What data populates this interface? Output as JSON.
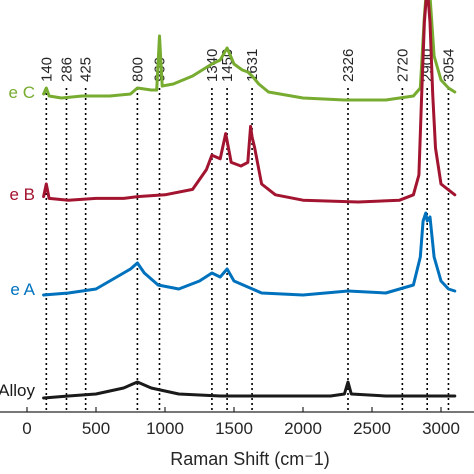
{
  "chart_data": {
    "type": "line",
    "title": "",
    "xlabel": "Raman Shift (cm⁻1)",
    "ylabel": "",
    "xlim": [
      0,
      3100
    ],
    "x_ticks": [
      "0",
      "500",
      "1000",
      "1500",
      "2000",
      "2500",
      "3000"
    ],
    "x_tick_values": [
      0,
      500,
      1000,
      1500,
      2000,
      2500,
      3000
    ],
    "grid": false,
    "legend": "inline labels at left edge",
    "peak_lines": [
      {
        "x": 140,
        "label": "140"
      },
      {
        "x": 286,
        "label": "286"
      },
      {
        "x": 425,
        "label": "425"
      },
      {
        "x": 800,
        "label": "800"
      },
      {
        "x": 960,
        "label": "960"
      },
      {
        "x": 1340,
        "label": "1340"
      },
      {
        "x": 1450,
        "label": "1450"
      },
      {
        "x": 1631,
        "label": "1631"
      },
      {
        "x": 2326,
        "label": "2326"
      },
      {
        "x": 2720,
        "label": "2720"
      },
      {
        "x": 2900,
        "label": "2900"
      },
      {
        "x": 3054,
        "label": "3054"
      }
    ],
    "series": [
      {
        "name": "e C",
        "color": "#77ac30",
        "baseline": 0,
        "x": [
          120,
          140,
          160,
          250,
          400,
          600,
          750,
          800,
          900,
          940,
          960,
          980,
          1060,
          1200,
          1340,
          1400,
          1450,
          1500,
          1560,
          1600,
          1631,
          1680,
          1750,
          2000,
          2300,
          2600,
          2800,
          2850,
          2880,
          2900,
          2920,
          2950,
          3000,
          3054,
          3100
        ],
        "y": [
          0.03,
          0.06,
          0.02,
          0.01,
          0.02,
          0.02,
          0.03,
          0.06,
          0.05,
          0.05,
          0.32,
          0.07,
          0.08,
          0.12,
          0.18,
          0.2,
          0.26,
          0.18,
          0.15,
          0.14,
          0.12,
          0.08,
          0.04,
          0.01,
          0.0,
          0.0,
          0.02,
          0.06,
          0.42,
          0.6,
          0.52,
          0.22,
          0.1,
          0.06,
          0.04
        ]
      },
      {
        "name": "e B",
        "color": "#a2142f",
        "baseline": 0,
        "x": [
          120,
          140,
          160,
          300,
          500,
          700,
          800,
          1000,
          1200,
          1300,
          1340,
          1400,
          1440,
          1450,
          1480,
          1550,
          1600,
          1620,
          1631,
          1650,
          1700,
          1800,
          2000,
          2400,
          2700,
          2800,
          2840,
          2860,
          2880,
          2900,
          2920,
          2940,
          2960,
          3000,
          3100
        ],
        "y": [
          0.03,
          0.1,
          0.02,
          0.01,
          0.02,
          0.02,
          0.03,
          0.04,
          0.07,
          0.18,
          0.26,
          0.24,
          0.38,
          0.34,
          0.22,
          0.2,
          0.22,
          0.42,
          0.36,
          0.3,
          0.1,
          0.04,
          0.01,
          0.0,
          0.01,
          0.04,
          0.15,
          0.6,
          1.0,
          1.2,
          1.0,
          0.6,
          0.3,
          0.1,
          0.04
        ]
      },
      {
        "name": "e A",
        "color": "#0072bd",
        "baseline": 0,
        "x": [
          120,
          300,
          500,
          650,
          750,
          800,
          850,
          950,
          1100,
          1250,
          1340,
          1400,
          1450,
          1500,
          1600,
          1700,
          2000,
          2326,
          2600,
          2800,
          2850,
          2870,
          2890,
          2900,
          2920,
          2950,
          3000,
          3054,
          3100
        ],
        "y": [
          0.01,
          0.02,
          0.04,
          0.1,
          0.14,
          0.17,
          0.12,
          0.06,
          0.04,
          0.08,
          0.12,
          0.1,
          0.14,
          0.08,
          0.05,
          0.02,
          0.01,
          0.03,
          0.02,
          0.06,
          0.2,
          0.38,
          0.42,
          0.38,
          0.4,
          0.2,
          0.08,
          0.04,
          0.03
        ]
      },
      {
        "name": "Alloy",
        "color": "#1a1a1a",
        "baseline": 0,
        "x": [
          120,
          300,
          500,
          700,
          800,
          900,
          1100,
          1400,
          1800,
          2200,
          2300,
          2326,
          2350,
          2600,
          2900,
          3100
        ],
        "y": [
          0.0,
          0.01,
          0.02,
          0.05,
          0.08,
          0.05,
          0.02,
          0.01,
          0.01,
          0.01,
          0.02,
          0.08,
          0.02,
          0.01,
          0.01,
          0.01
        ]
      }
    ]
  }
}
